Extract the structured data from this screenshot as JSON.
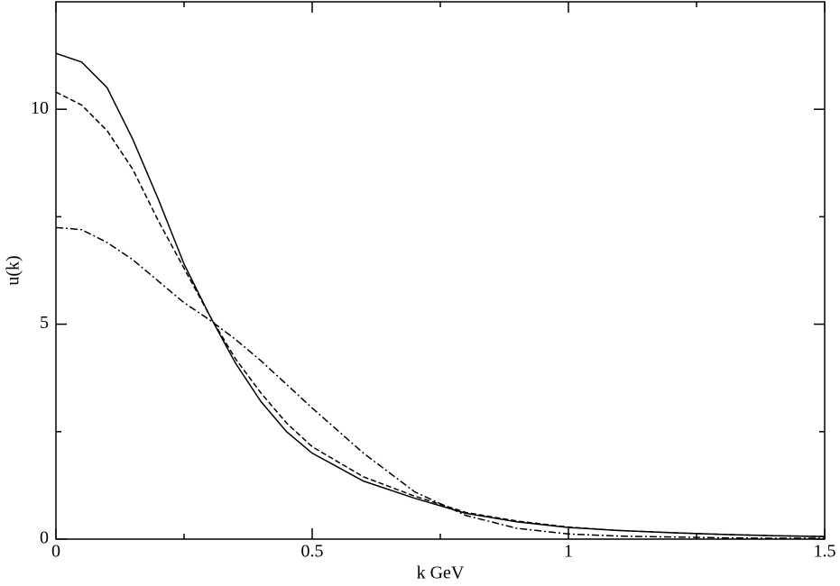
{
  "chart_data": {
    "type": "line",
    "x_label": "k  GeV",
    "y_label": "u(k)",
    "x": [
      0,
      0.05,
      0.1,
      0.15,
      0.2,
      0.25,
      0.3,
      0.35,
      0.4,
      0.45,
      0.5,
      0.6,
      0.7,
      0.8,
      0.9,
      1.0,
      1.1,
      1.2,
      1.3,
      1.4,
      1.5
    ],
    "series": [
      {
        "color": "#000000",
        "dash": "solid",
        "values": [
          11.3,
          11.1,
          10.5,
          9.3,
          7.9,
          6.4,
          5.2,
          4.1,
          3.2,
          2.5,
          2.0,
          1.35,
          0.95,
          0.6,
          0.4,
          0.27,
          0.2,
          0.15,
          0.11,
          0.08,
          0.06
        ]
      },
      {
        "color": "#000000",
        "dash": "dashed",
        "values": [
          10.4,
          10.1,
          9.5,
          8.6,
          7.4,
          6.3,
          5.2,
          4.2,
          3.4,
          2.7,
          2.15,
          1.45,
          1.0,
          0.62,
          0.42,
          0.28,
          0.2,
          0.15,
          0.11,
          0.08,
          0.06
        ]
      },
      {
        "color": "#000000",
        "dash": "dashdot",
        "values": [
          7.25,
          7.2,
          6.9,
          6.5,
          6.0,
          5.5,
          5.1,
          4.65,
          4.15,
          3.6,
          3.05,
          2.0,
          1.1,
          0.55,
          0.25,
          0.12,
          0.07,
          0.05,
          0.03,
          0.02,
          0.02
        ]
      }
    ],
    "xlim": [
      0,
      1.5
    ],
    "ylim": [
      0,
      12.5
    ],
    "xticks": [
      0,
      0.5,
      1,
      1.5
    ],
    "yticks": [
      0,
      5,
      10
    ],
    "xminorticks": [
      0.25,
      0.75,
      1.25
    ],
    "yminorticks": [
      2.5,
      7.5
    ],
    "grid": false
  }
}
